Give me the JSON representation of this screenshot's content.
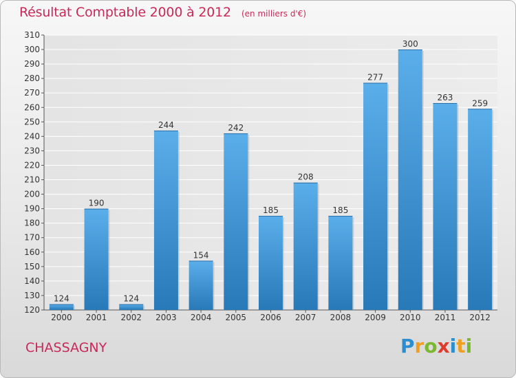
{
  "header": {
    "title": "Résultat Comptable 2000 à 2012",
    "unit": "(en milliers d'€)"
  },
  "commune": "CHASSAGNY",
  "logo": {
    "text": "Proxiti",
    "icon": "proxiti-logo"
  },
  "colors": {
    "title": "#c8285a",
    "bar_light": "#5aaeea",
    "bar_dark": "#2779b7"
  },
  "chart_data": {
    "type": "bar",
    "title": "Résultat Comptable 2000 à 2012",
    "subtitle": "(en milliers d'€)",
    "xlabel": "",
    "ylabel": "",
    "categories": [
      "2000",
      "2001",
      "2002",
      "2003",
      "2004",
      "2005",
      "2006",
      "2007",
      "2008",
      "2009",
      "2010",
      "2011",
      "2012"
    ],
    "values": [
      124,
      190,
      124,
      244,
      154,
      242,
      185,
      208,
      185,
      277,
      300,
      263,
      259
    ],
    "ylim": [
      120,
      310
    ],
    "yticks": [
      120,
      130,
      140,
      150,
      160,
      170,
      180,
      190,
      200,
      210,
      220,
      230,
      240,
      250,
      260,
      270,
      280,
      290,
      300,
      310
    ],
    "grid": true,
    "data_labels": true
  }
}
